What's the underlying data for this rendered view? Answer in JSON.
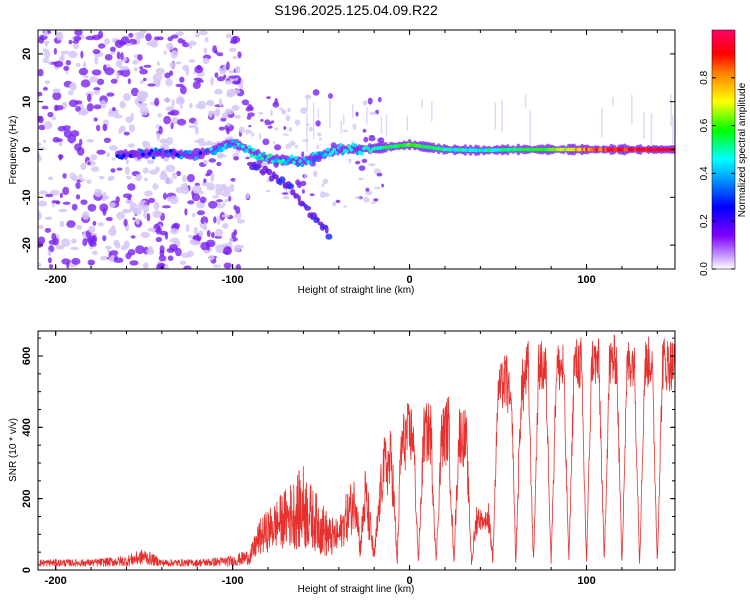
{
  "title": "S196.2025.125.04.09.R22",
  "chart_data": [
    {
      "type": "heatmap",
      "xlabel": "Height of straight line (km)",
      "ylabel": "Frequency (Hz)",
      "xlim": [
        -210,
        150
      ],
      "ylim": [
        -25,
        25
      ],
      "xticks": [
        -200,
        -100,
        0,
        100
      ],
      "yticks": [
        -20,
        -10,
        0,
        10,
        20
      ],
      "colorbar": {
        "label": "Normalized spectral amplitude",
        "range": [
          0,
          1
        ],
        "ticks": [
          "0.0",
          "0.2",
          "0.4",
          "0.6",
          "0.8"
        ],
        "colormap": [
          "#ffffff",
          "#8000ff",
          "#0000ff",
          "#00ffff",
          "#00ff00",
          "#ffff00",
          "#ff0000",
          "#ff0066"
        ]
      },
      "signal_track": [
        {
          "x": -160,
          "y": -1.0
        },
        {
          "x": -140,
          "y": -0.8
        },
        {
          "x": -120,
          "y": -1.2
        },
        {
          "x": -100,
          "y": 1.5
        },
        {
          "x": -80,
          "y": -2.0
        },
        {
          "x": -60,
          "y": -2.5
        },
        {
          "x": -40,
          "y": 0.0
        },
        {
          "x": -20,
          "y": 0.2
        },
        {
          "x": 0,
          "y": 1.0
        },
        {
          "x": 20,
          "y": 0.0
        },
        {
          "x": 40,
          "y": -0.2
        },
        {
          "x": 60,
          "y": 0.0
        },
        {
          "x": 80,
          "y": 0.0
        },
        {
          "x": 100,
          "y": 0.0
        },
        {
          "x": 120,
          "y": 0.0
        },
        {
          "x": 140,
          "y": 0.0
        }
      ],
      "signal_amplitude": [
        {
          "x": -160,
          "v": 0.3
        },
        {
          "x": -120,
          "v": 0.35
        },
        {
          "x": -100,
          "v": 0.4
        },
        {
          "x": -80,
          "v": 0.45
        },
        {
          "x": -60,
          "v": 0.4
        },
        {
          "x": -40,
          "v": 0.4
        },
        {
          "x": -20,
          "v": 0.45
        },
        {
          "x": 0,
          "v": 0.6
        },
        {
          "x": 20,
          "v": 0.45
        },
        {
          "x": 40,
          "v": 0.45
        },
        {
          "x": 60,
          "v": 0.5
        },
        {
          "x": 80,
          "v": 0.6
        },
        {
          "x": 100,
          "v": 0.8
        },
        {
          "x": 120,
          "v": 0.85
        },
        {
          "x": 140,
          "v": 0.9
        }
      ],
      "branch": [
        {
          "x": -90,
          "y": -3
        },
        {
          "x": -70,
          "y": -7
        },
        {
          "x": -55,
          "y": -14
        },
        {
          "x": -45,
          "y": -18
        }
      ]
    },
    {
      "type": "line",
      "xlabel": "Height of straight line (km)",
      "ylabel": "SNR (10 * v/v)",
      "xlim": [
        -210,
        150
      ],
      "ylim": [
        0,
        670
      ],
      "xticks": [
        -200,
        -100,
        0,
        100
      ],
      "yticks": [
        0,
        200,
        400,
        600
      ],
      "series": [
        {
          "color": "#e8302e",
          "envelope": [
            [
              -210,
              10,
              30
            ],
            [
              -180,
              10,
              30
            ],
            [
              -160,
              10,
              40
            ],
            [
              -150,
              15,
              60
            ],
            [
              -140,
              10,
              30
            ],
            [
              -120,
              10,
              30
            ],
            [
              -100,
              10,
              40
            ],
            [
              -90,
              15,
              60
            ],
            [
              -85,
              40,
              140
            ],
            [
              -75,
              60,
              200
            ],
            [
              -65,
              60,
              260
            ],
            [
              -60,
              50,
              300
            ],
            [
              -55,
              60,
              230
            ],
            [
              -50,
              40,
              200
            ],
            [
              -45,
              30,
              150
            ],
            [
              -40,
              50,
              140
            ],
            [
              -35,
              80,
              230
            ],
            [
              -30,
              120,
              280
            ],
            [
              -28,
              30,
              80
            ],
            [
              -25,
              120,
              300
            ],
            [
              -20,
              10,
              60
            ],
            [
              -15,
              200,
              370
            ],
            [
              -10,
              200,
              400
            ],
            [
              -7,
              10,
              30
            ],
            [
              -5,
              250,
              420
            ],
            [
              -2,
              280,
              470
            ],
            [
              2,
              300,
              470
            ],
            [
              5,
              10,
              30
            ],
            [
              8,
              300,
              460
            ],
            [
              12,
              290,
              480
            ],
            [
              15,
              10,
              30
            ],
            [
              18,
              280,
              450
            ],
            [
              22,
              300,
              500
            ],
            [
              25,
              10,
              30
            ],
            [
              28,
              300,
              470
            ],
            [
              32,
              280,
              450
            ],
            [
              35,
              10,
              30
            ],
            [
              38,
              100,
              200
            ],
            [
              42,
              120,
              150
            ],
            [
              45,
              100,
              200
            ],
            [
              47,
              10,
              30
            ],
            [
              50,
              450,
              560
            ],
            [
              55,
              440,
              620
            ],
            [
              58,
              380,
              460
            ],
            [
              60,
              10,
              30
            ],
            [
              63,
              400,
              580
            ],
            [
              67,
              500,
              650
            ],
            [
              70,
              10,
              30
            ],
            [
              73,
              500,
              640
            ],
            [
              77,
              480,
              650
            ],
            [
              80,
              10,
              30
            ],
            [
              83,
              500,
              640
            ],
            [
              87,
              480,
              650
            ],
            [
              90,
              10,
              30
            ],
            [
              93,
              500,
              650
            ],
            [
              97,
              500,
              660
            ],
            [
              100,
              10,
              30
            ],
            [
              103,
              520,
              660
            ],
            [
              107,
              500,
              650
            ],
            [
              110,
              10,
              30
            ],
            [
              113,
              500,
              660
            ],
            [
              117,
              520,
              660
            ],
            [
              120,
              10,
              30
            ],
            [
              123,
              500,
              650
            ],
            [
              127,
              520,
              660
            ],
            [
              130,
              10,
              30
            ],
            [
              133,
              500,
              650
            ],
            [
              137,
              520,
              660
            ],
            [
              140,
              10,
              30
            ],
            [
              143,
              500,
              660
            ],
            [
              150,
              500,
              650
            ]
          ]
        }
      ]
    }
  ]
}
